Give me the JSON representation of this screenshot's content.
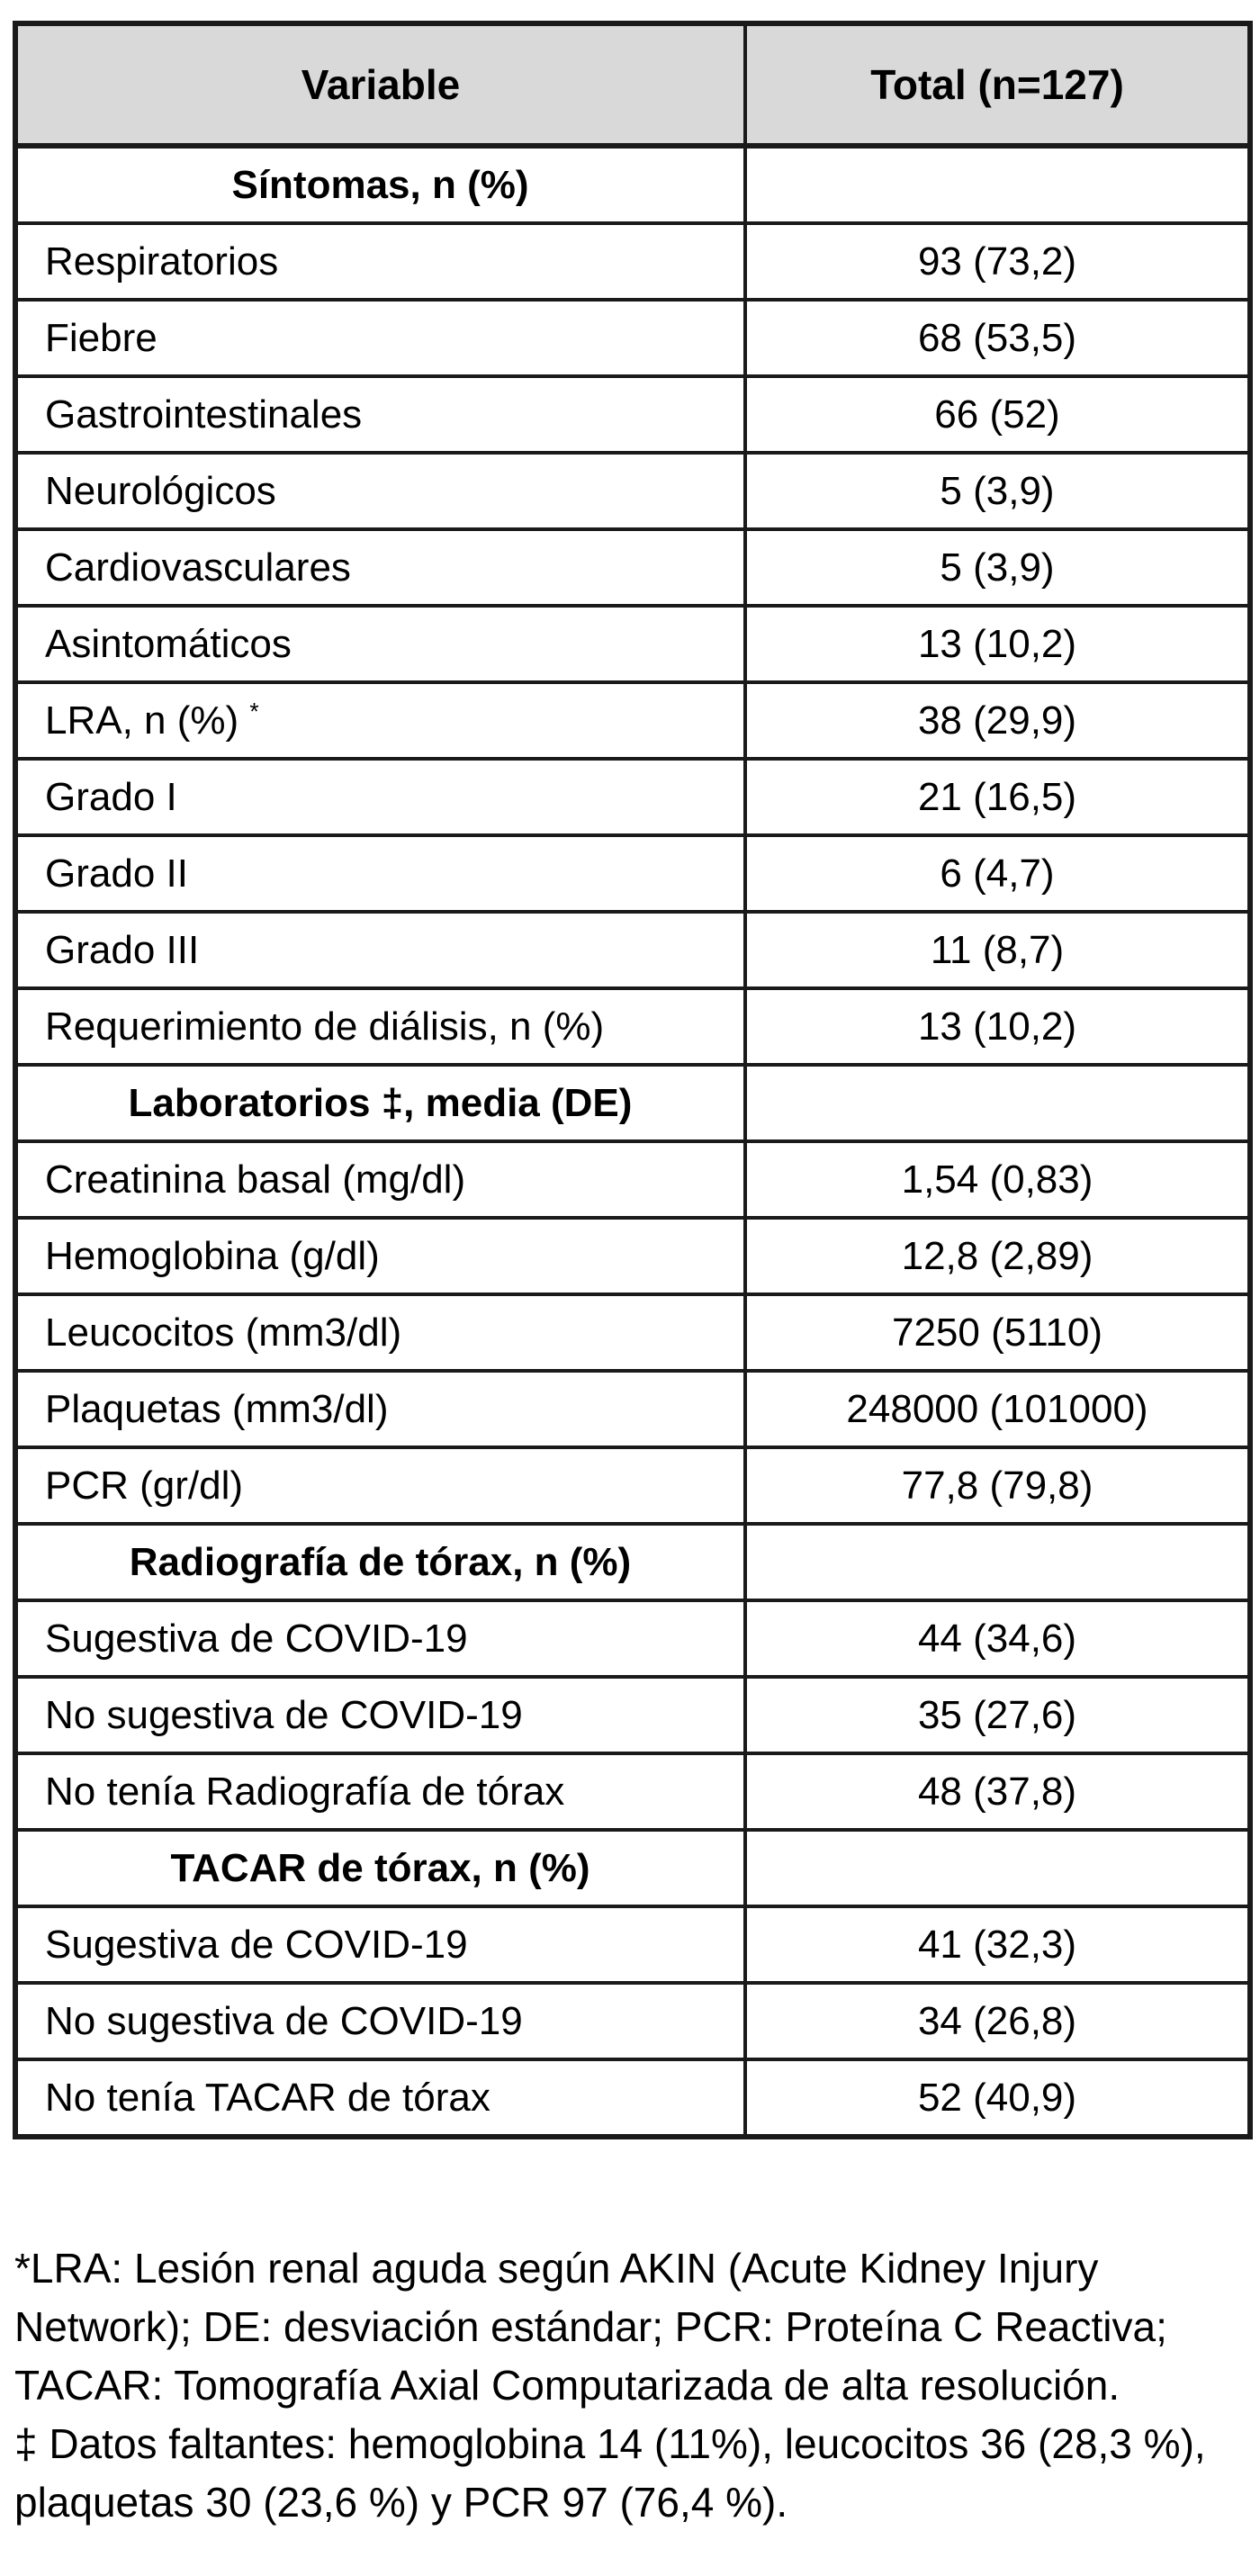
{
  "table": {
    "header": {
      "col1": "Variable",
      "col2": "Total (n=127)"
    },
    "rows": [
      {
        "type": "section",
        "label": "Síntomas, n (%)",
        "value": ""
      },
      {
        "type": "data",
        "label": "Respiratorios",
        "value": "93 (73,2)"
      },
      {
        "type": "data",
        "label": "Fiebre",
        "value": "68 (53,5)"
      },
      {
        "type": "data",
        "label": "Gastrointestinales",
        "value": "66 (52)"
      },
      {
        "type": "data",
        "label": "Neurológicos",
        "value": "5 (3,9)"
      },
      {
        "type": "data",
        "label": "Cardiovasculares",
        "value": "5 (3,9)"
      },
      {
        "type": "data",
        "label": "Asintomáticos",
        "value": "13 (10,2)"
      },
      {
        "type": "data",
        "label": "LRA, n (%)",
        "sup": "*",
        "value": "38 (29,9)"
      },
      {
        "type": "data",
        "label": "Grado I",
        "value": "21 (16,5)"
      },
      {
        "type": "data",
        "label": "Grado II",
        "value": "6 (4,7)"
      },
      {
        "type": "data",
        "label": "Grado III",
        "value": "11 (8,7)"
      },
      {
        "type": "data",
        "label": "Requerimiento de diálisis, n (%)",
        "value": "13 (10,2)"
      },
      {
        "type": "section",
        "label": "Laboratorios ‡, media (DE)",
        "value": ""
      },
      {
        "type": "data",
        "label": "Creatinina basal (mg/dl)",
        "value": "1,54 (0,83)"
      },
      {
        "type": "data",
        "label": "Hemoglobina (g/dl)",
        "value": "12,8 (2,89)"
      },
      {
        "type": "data",
        "label": "Leucocitos (mm3/dl)",
        "value": "7250 (5110)"
      },
      {
        "type": "data",
        "label": "Plaquetas (mm3/dl)",
        "value": "248000 (101000)"
      },
      {
        "type": "data",
        "label": "PCR (gr/dl)",
        "value": "77,8 (79,8)"
      },
      {
        "type": "section",
        "label": "Radiografía de tórax, n (%)",
        "value": ""
      },
      {
        "type": "data",
        "label": "Sugestiva de COVID-19",
        "value": "44 (34,6)"
      },
      {
        "type": "data",
        "label": "No sugestiva de COVID-19",
        "value": "35 (27,6)"
      },
      {
        "type": "data",
        "label": "No tenía Radiografía de tórax",
        "value": "48 (37,8)"
      },
      {
        "type": "section",
        "label": "TACAR de tórax, n (%)",
        "value": ""
      },
      {
        "type": "data",
        "label": "Sugestiva de COVID-19",
        "value": "41 (32,3)"
      },
      {
        "type": "data",
        "label": "No sugestiva de COVID-19",
        "value": "34 (26,8)"
      },
      {
        "type": "data",
        "label": "No tenía TACAR de tórax",
        "value": "52 (40,9)"
      }
    ]
  },
  "footnotes": {
    "note1": "*LRA: Lesión renal aguda según AKIN (Acute Kidney Injury Network); DE: desviación estándar; PCR: Proteína C Reactiva; TACAR: Tomografía Axial Computarizada de alta resolución.",
    "note2": "‡ Datos faltantes: hemoglobina 14 (11%), leucocitos 36 (28,3 %), plaquetas 30 (23,6 %) y PCR 97 (76,4 %)."
  },
  "colors": {
    "header_bg": "#d9d9d9",
    "border": "#1a1a1a",
    "text": "#000000",
    "page_bg": "#ffffff"
  }
}
